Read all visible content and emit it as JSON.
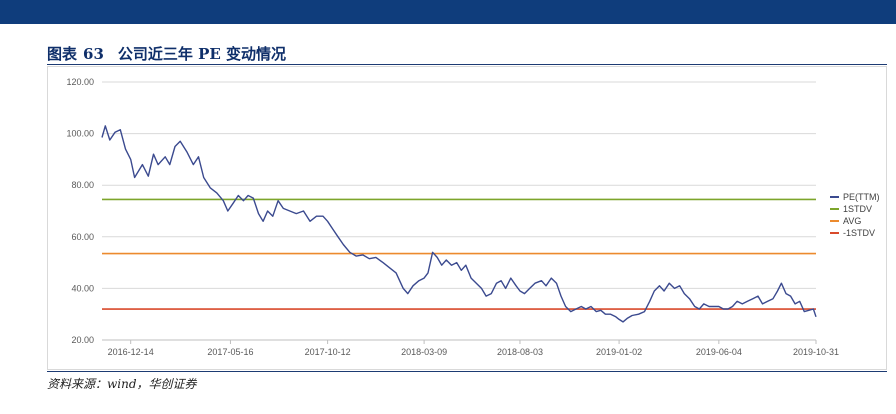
{
  "header": {
    "title_prefix": "图表",
    "figure_number": "63",
    "title": "公司近三年 PE 变动情况"
  },
  "source": "资料来源：wind，华创证券",
  "colors": {
    "band": "#0f3d7c",
    "pe": "#3b4a8f",
    "plus1": "#7da52b",
    "avg": "#ec8a2e",
    "minus1": "#d94a2b"
  },
  "chart_data": {
    "type": "line",
    "y_ticks": [
      "20.00",
      "40.00",
      "60.00",
      "80.00",
      "100.00",
      "120.00"
    ],
    "ylim": [
      20,
      120
    ],
    "x_ticks": [
      "2016-12-14",
      "2017-05-16",
      "2017-10-12",
      "2018-03-09",
      "2018-08-03",
      "2019-01-02",
      "2019-06-04",
      "2019-10-31"
    ],
    "xlim": [
      "2016-10-31",
      "2019-10-31"
    ],
    "grid": "horizontal",
    "legend_position": "right",
    "series": [
      {
        "name": "PE(TTM)",
        "points": [
          [
            "2016-10-31",
            98.5
          ],
          [
            "2016-11-05",
            103
          ],
          [
            "2016-11-12",
            97.5
          ],
          [
            "2016-11-20",
            100.5
          ],
          [
            "2016-11-28",
            101.5
          ],
          [
            "2016-12-06",
            94
          ],
          [
            "2016-12-14",
            90
          ],
          [
            "2016-12-20",
            83
          ],
          [
            "2017-01-01",
            88
          ],
          [
            "2017-01-10",
            83.5
          ],
          [
            "2017-01-18",
            92
          ],
          [
            "2017-01-25",
            88
          ],
          [
            "2017-02-05",
            91
          ],
          [
            "2017-02-12",
            88
          ],
          [
            "2017-02-20",
            95
          ],
          [
            "2017-02-28",
            97
          ],
          [
            "2017-03-10",
            93
          ],
          [
            "2017-03-20",
            88
          ],
          [
            "2017-03-28",
            91
          ],
          [
            "2017-04-05",
            83
          ],
          [
            "2017-04-15",
            79
          ],
          [
            "2017-04-25",
            77
          ],
          [
            "2017-05-05",
            74
          ],
          [
            "2017-05-12",
            70
          ],
          [
            "2017-05-20",
            73
          ],
          [
            "2017-05-28",
            76
          ],
          [
            "2017-06-05",
            74
          ],
          [
            "2017-06-12",
            76
          ],
          [
            "2017-06-20",
            75
          ],
          [
            "2017-06-28",
            69
          ],
          [
            "2017-07-05",
            66
          ],
          [
            "2017-07-12",
            70
          ],
          [
            "2017-07-20",
            68
          ],
          [
            "2017-07-28",
            74
          ],
          [
            "2017-08-05",
            71
          ],
          [
            "2017-08-15",
            70
          ],
          [
            "2017-08-25",
            69
          ],
          [
            "2017-09-05",
            70
          ],
          [
            "2017-09-15",
            66
          ],
          [
            "2017-09-25",
            68
          ],
          [
            "2017-10-05",
            68
          ],
          [
            "2017-10-12",
            66
          ],
          [
            "2017-10-20",
            63
          ],
          [
            "2017-10-28",
            60
          ],
          [
            "2017-11-05",
            57
          ],
          [
            "2017-11-15",
            54
          ],
          [
            "2017-11-25",
            52.5
          ],
          [
            "2017-12-05",
            53
          ],
          [
            "2017-12-15",
            51.5
          ],
          [
            "2017-12-25",
            52
          ],
          [
            "2018-01-05",
            50
          ],
          [
            "2018-01-15",
            48
          ],
          [
            "2018-01-25",
            46
          ],
          [
            "2018-02-05",
            40
          ],
          [
            "2018-02-12",
            38
          ],
          [
            "2018-02-20",
            41
          ],
          [
            "2018-03-01",
            43
          ],
          [
            "2018-03-09",
            44
          ],
          [
            "2018-03-15",
            46
          ],
          [
            "2018-03-22",
            54
          ],
          [
            "2018-03-29",
            52
          ],
          [
            "2018-04-05",
            49
          ],
          [
            "2018-04-12",
            51
          ],
          [
            "2018-04-20",
            49
          ],
          [
            "2018-04-28",
            50
          ],
          [
            "2018-05-05",
            47
          ],
          [
            "2018-05-12",
            49
          ],
          [
            "2018-05-20",
            44
          ],
          [
            "2018-05-28",
            42
          ],
          [
            "2018-06-05",
            40
          ],
          [
            "2018-06-12",
            37
          ],
          [
            "2018-06-20",
            38
          ],
          [
            "2018-06-28",
            42
          ],
          [
            "2018-07-05",
            43
          ],
          [
            "2018-07-12",
            40
          ],
          [
            "2018-07-20",
            44
          ],
          [
            "2018-07-28",
            41
          ],
          [
            "2018-08-03",
            39
          ],
          [
            "2018-08-10",
            38
          ],
          [
            "2018-08-18",
            40
          ],
          [
            "2018-08-26",
            42
          ],
          [
            "2018-09-05",
            43
          ],
          [
            "2018-09-12",
            41
          ],
          [
            "2018-09-20",
            44
          ],
          [
            "2018-09-28",
            42
          ],
          [
            "2018-10-05",
            37
          ],
          [
            "2018-10-12",
            33
          ],
          [
            "2018-10-20",
            31
          ],
          [
            "2018-10-28",
            32
          ],
          [
            "2018-11-05",
            33
          ],
          [
            "2018-11-12",
            32
          ],
          [
            "2018-11-20",
            33
          ],
          [
            "2018-11-28",
            31
          ],
          [
            "2018-12-05",
            31.5
          ],
          [
            "2018-12-12",
            30
          ],
          [
            "2018-12-20",
            30
          ],
          [
            "2018-12-28",
            29
          ],
          [
            "2019-01-02",
            28
          ],
          [
            "2019-01-08",
            27
          ],
          [
            "2019-01-15",
            28.5
          ],
          [
            "2019-01-22",
            29.5
          ],
          [
            "2019-02-01",
            30
          ],
          [
            "2019-02-10",
            31
          ],
          [
            "2019-02-18",
            35
          ],
          [
            "2019-02-25",
            39
          ],
          [
            "2019-03-05",
            41
          ],
          [
            "2019-03-12",
            39
          ],
          [
            "2019-03-20",
            42
          ],
          [
            "2019-03-28",
            40
          ],
          [
            "2019-04-05",
            41
          ],
          [
            "2019-04-12",
            38
          ],
          [
            "2019-04-20",
            36
          ],
          [
            "2019-04-28",
            33
          ],
          [
            "2019-05-05",
            32
          ],
          [
            "2019-05-12",
            34
          ],
          [
            "2019-05-20",
            33
          ],
          [
            "2019-05-28",
            33
          ],
          [
            "2019-06-04",
            33
          ],
          [
            "2019-06-11",
            32
          ],
          [
            "2019-06-18",
            32
          ],
          [
            "2019-06-25",
            33
          ],
          [
            "2019-07-02",
            35
          ],
          [
            "2019-07-10",
            34
          ],
          [
            "2019-07-18",
            35
          ],
          [
            "2019-07-26",
            36
          ],
          [
            "2019-08-03",
            37
          ],
          [
            "2019-08-10",
            34
          ],
          [
            "2019-08-18",
            35
          ],
          [
            "2019-08-26",
            36
          ],
          [
            "2019-09-02",
            39
          ],
          [
            "2019-09-08",
            42
          ],
          [
            "2019-09-15",
            38
          ],
          [
            "2019-09-22",
            37
          ],
          [
            "2019-09-29",
            34
          ],
          [
            "2019-10-06",
            35
          ],
          [
            "2019-10-13",
            31
          ],
          [
            "2019-10-20",
            31.5
          ],
          [
            "2019-10-27",
            32
          ],
          [
            "2019-10-31",
            29
          ]
        ]
      },
      {
        "name": "1STDV",
        "value": 74.5
      },
      {
        "name": "AVG",
        "value": 53.5
      },
      {
        "name": "-1STDV",
        "value": 32.0
      }
    ]
  }
}
